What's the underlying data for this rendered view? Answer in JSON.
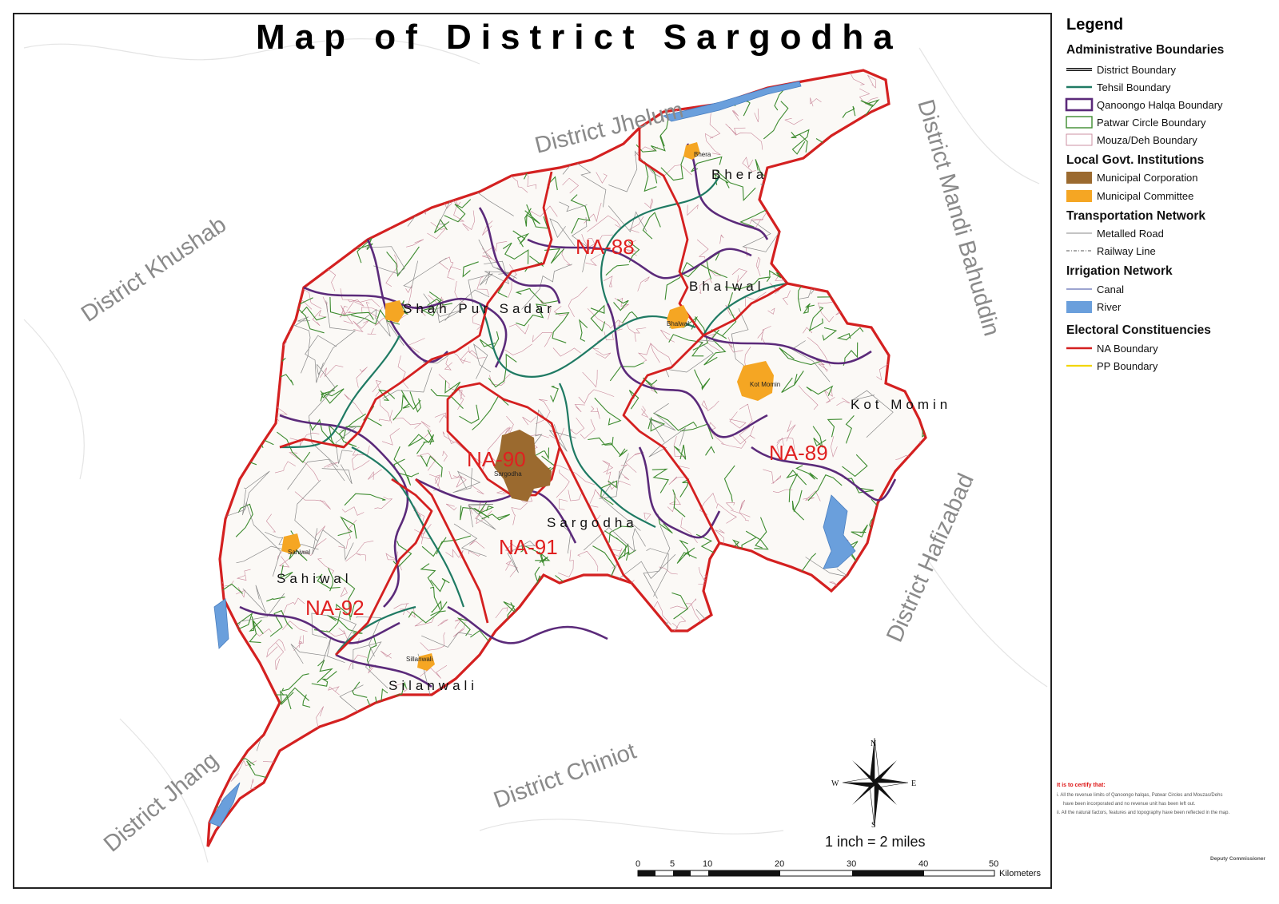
{
  "map": {
    "title": "Map of District Sargodha",
    "neighbors": [
      {
        "label": "District Jhelum"
      },
      {
        "label": "District Khushab"
      },
      {
        "label": "District Mandi Bahuddin"
      },
      {
        "label": "District Hafizabad"
      },
      {
        "label": "District Chiniot"
      },
      {
        "label": "District Jhang"
      }
    ],
    "tehsils": [
      "Bhera",
      "Bhalwal",
      "Shah Pur Sadar",
      "Kot Momin",
      "Sargodha",
      "Sahiwal",
      "Silanwali"
    ],
    "constituencies": [
      "NA-88",
      "NA-89",
      "NA-90",
      "NA-91",
      "NA-92"
    ],
    "towns": [
      "Bhera",
      "Bhalwal",
      "Kot Momin",
      "Sargodha",
      "Sahiwal",
      "Sillanwali"
    ],
    "compass": {
      "n": "N",
      "s": "S",
      "e": "E",
      "w": "W"
    },
    "scale": {
      "note": "1 inch = 2 miles",
      "ticks": [
        "0",
        "5",
        "10",
        "20",
        "30",
        "40",
        "50"
      ],
      "unit": "Kilometers"
    }
  },
  "legend": {
    "title": "Legend",
    "sections": [
      {
        "heading": "Administrative Boundaries",
        "items": [
          "District Boundary",
          "Tehsil Boundary",
          "Qanoongo Halqa Boundary",
          "Patwar Circle Boundary",
          "Mouza/Deh Boundary"
        ]
      },
      {
        "heading": "Local Govt. Institutions",
        "items": [
          "Municipal Corporation",
          "Municipal Committee"
        ]
      },
      {
        "heading": "Transportation Network",
        "items": [
          "Metalled Road",
          "Railway Line"
        ]
      },
      {
        "heading": "Irrigation Network",
        "items": [
          "Canal",
          "River"
        ]
      },
      {
        "heading": "Electoral Constituencies",
        "items": [
          "NA Boundary",
          "PP Boundary"
        ]
      }
    ]
  },
  "certificate": {
    "heading": "It is to certify that:",
    "lines": [
      "i.  All the revenue limits of Qanoongo halqas, Patwar Circles and Mouzas/Dehs",
      "have been incorporated and no revenue unit has been left out.",
      "ii. All the natural factors, features and topography have been reflected in the map."
    ],
    "signature": "Deputy Commissioner"
  },
  "colors": {
    "district": "#d42020",
    "tehsil": "#1f7a63",
    "qanoongo": "#5b2a7a",
    "patwar": "#3d8b2f",
    "mouza": "#c9879a",
    "corporation": "#9b6a2f",
    "committee": "#f5a623",
    "road": "#888888",
    "canal": "#3a4aa0",
    "river": "#6a9fdc",
    "na": "#d42020",
    "pp": "#f2d600",
    "neighbor_text": "#8a8a8a"
  }
}
